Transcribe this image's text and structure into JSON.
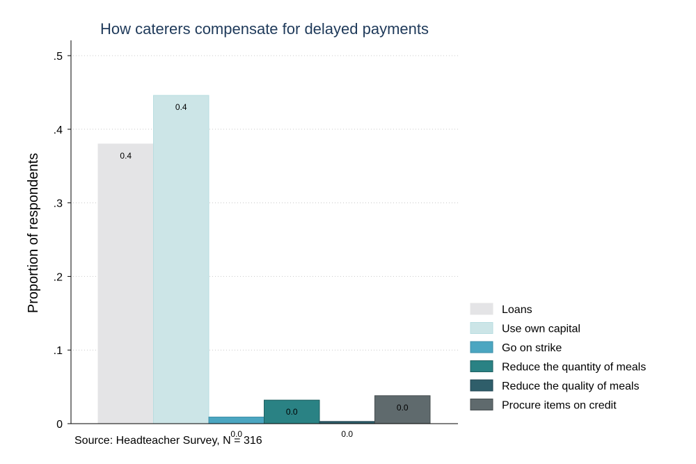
{
  "chart_data": {
    "type": "bar",
    "title": "How caterers compensate for delayed payments",
    "xlabel": "",
    "ylabel": "Proportion of respondents",
    "ylim": [
      0,
      0.5
    ],
    "yticks": [
      0,
      0.1,
      0.2,
      0.3,
      0.4,
      0.5
    ],
    "ytick_labels": [
      "0",
      ".1",
      ".2",
      ".3",
      ".4",
      ".5"
    ],
    "grid": true,
    "legend_position": "bottom-right",
    "note": "Source: Headteacher Survey, N = 316",
    "series": [
      {
        "name": "Loans",
        "value": 0.38,
        "label": "0.4",
        "color": "#e4e4e6",
        "border": "#e4e4e6",
        "label_position": "inside"
      },
      {
        "name": "Use own capital",
        "value": 0.446,
        "label": "0.4",
        "color": "#cce5e7",
        "border": "#b8dde0",
        "label_position": "inside"
      },
      {
        "name": "Go on strike",
        "value": 0.009,
        "label": "0.0",
        "color": "#4ba6c1",
        "border": "#3c8fa8",
        "label_position": "below"
      },
      {
        "name": "Reduce the quantity of meals",
        "value": 0.032,
        "label": "0.0",
        "color": "#2a8284",
        "border": "#1f5f60",
        "label_position": "inside"
      },
      {
        "name": "Reduce the quality of meals",
        "value": 0.003,
        "label": "0.0",
        "color": "#2f5e6a",
        "border": "#1f4350",
        "label_position": "below"
      },
      {
        "name": "Procure items on credit",
        "value": 0.038,
        "label": "0.0",
        "color": "#5f6a6d",
        "border": "#444c4e",
        "label_position": "inside"
      }
    ]
  }
}
